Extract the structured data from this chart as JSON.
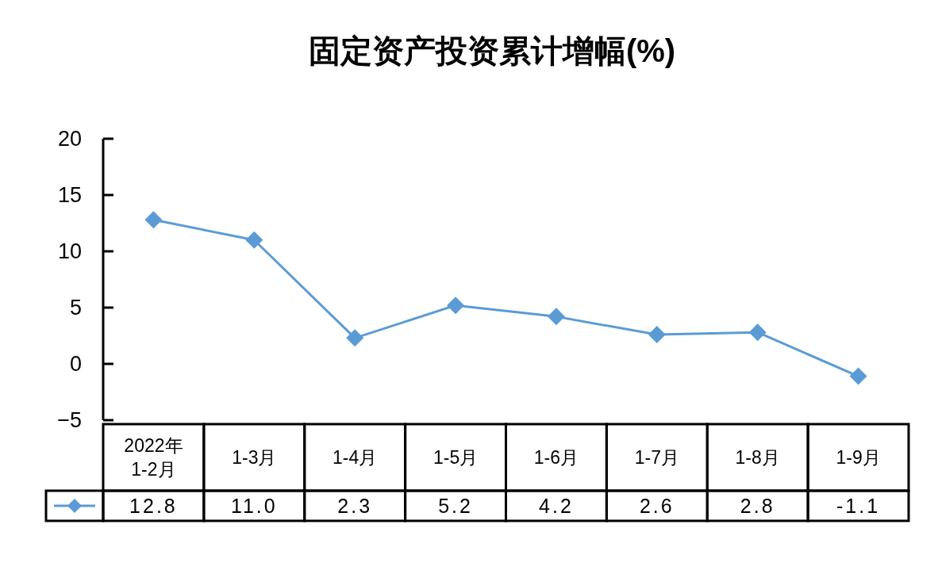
{
  "chart_data": {
    "type": "line",
    "title": "固定资产投资累计增幅(%)",
    "categories": [
      "2022年\n1-2月",
      "1-3月",
      "1-4月",
      "1-5月",
      "1-6月",
      "1-7月",
      "1-8月",
      "1-9月"
    ],
    "series": [
      {
        "color": "#5b9bd5",
        "values": [
          12.8,
          11.0,
          2.3,
          5.2,
          4.2,
          2.6,
          2.8,
          -1.1
        ],
        "value_labels": [
          "12.8",
          "11.0",
          "2.3",
          "5.2",
          "4.2",
          "2.6",
          "2.8",
          "-1.1"
        ]
      }
    ],
    "ylim": [
      -5,
      20
    ],
    "yticks": [
      -5,
      0,
      5,
      10,
      15,
      20
    ],
    "marker": "diamond",
    "line_style": "solid"
  }
}
